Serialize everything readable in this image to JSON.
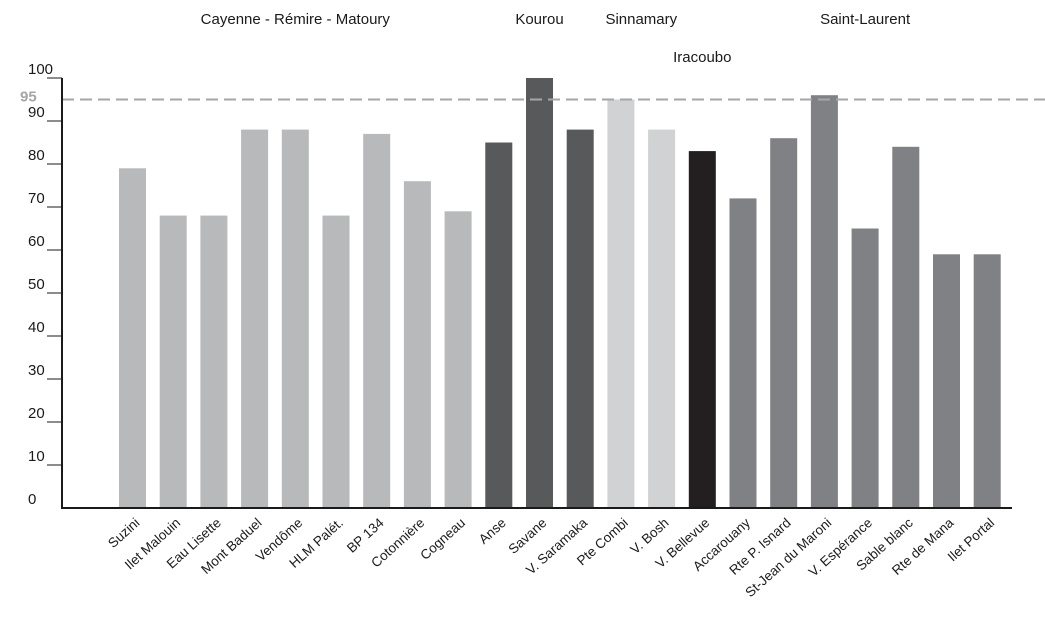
{
  "chart_data": {
    "type": "bar",
    "categories": [
      "Suzini",
      "Ilet Malouin",
      "Eau Lisette",
      "Mont Baduel",
      "Vendôme",
      "HLM Palét.",
      "BP 134",
      "Cotonnière",
      "Cogneau",
      "Anse",
      "Savane",
      "V. Saramaka",
      "Pte Combi",
      "V. Bosh",
      "V. Bellevue",
      "Accarouany",
      "Rte P. Isnard",
      "St-Jean du Maroni",
      "V. Espérance",
      "Sable blanc",
      "Rte de Mana",
      "Ilet Portal"
    ],
    "values": [
      79,
      68,
      68,
      88,
      88,
      68,
      87,
      76,
      69,
      85,
      100,
      88,
      95,
      88,
      83,
      72,
      86,
      96,
      65,
      84,
      59,
      59
    ],
    "groups": [
      {
        "name": "Cayenne - Rémire - Matoury",
        "start": 0,
        "end": 8,
        "color": "#b8b9bb"
      },
      {
        "name": "Kourou",
        "start": 9,
        "end": 11,
        "color": "#58595b"
      },
      {
        "name": "Sinnamary",
        "start": 12,
        "end": 13,
        "color": "#d1d2d3"
      },
      {
        "name": "Iracoubo",
        "start": 14,
        "end": 14,
        "color": "#231f20"
      },
      {
        "name": "Saint-Laurent",
        "start": 15,
        "end": 21,
        "color": "#808184"
      }
    ],
    "reference_line": {
      "value": 95,
      "label": "95",
      "color": "#a6a6a6",
      "style": "dashed"
    },
    "yticks": [
      0,
      10,
      20,
      30,
      40,
      50,
      60,
      70,
      80,
      90,
      100
    ],
    "ylim": [
      0,
      100
    ],
    "grid": false,
    "title": "",
    "xlabel": "",
    "ylabel": ""
  }
}
